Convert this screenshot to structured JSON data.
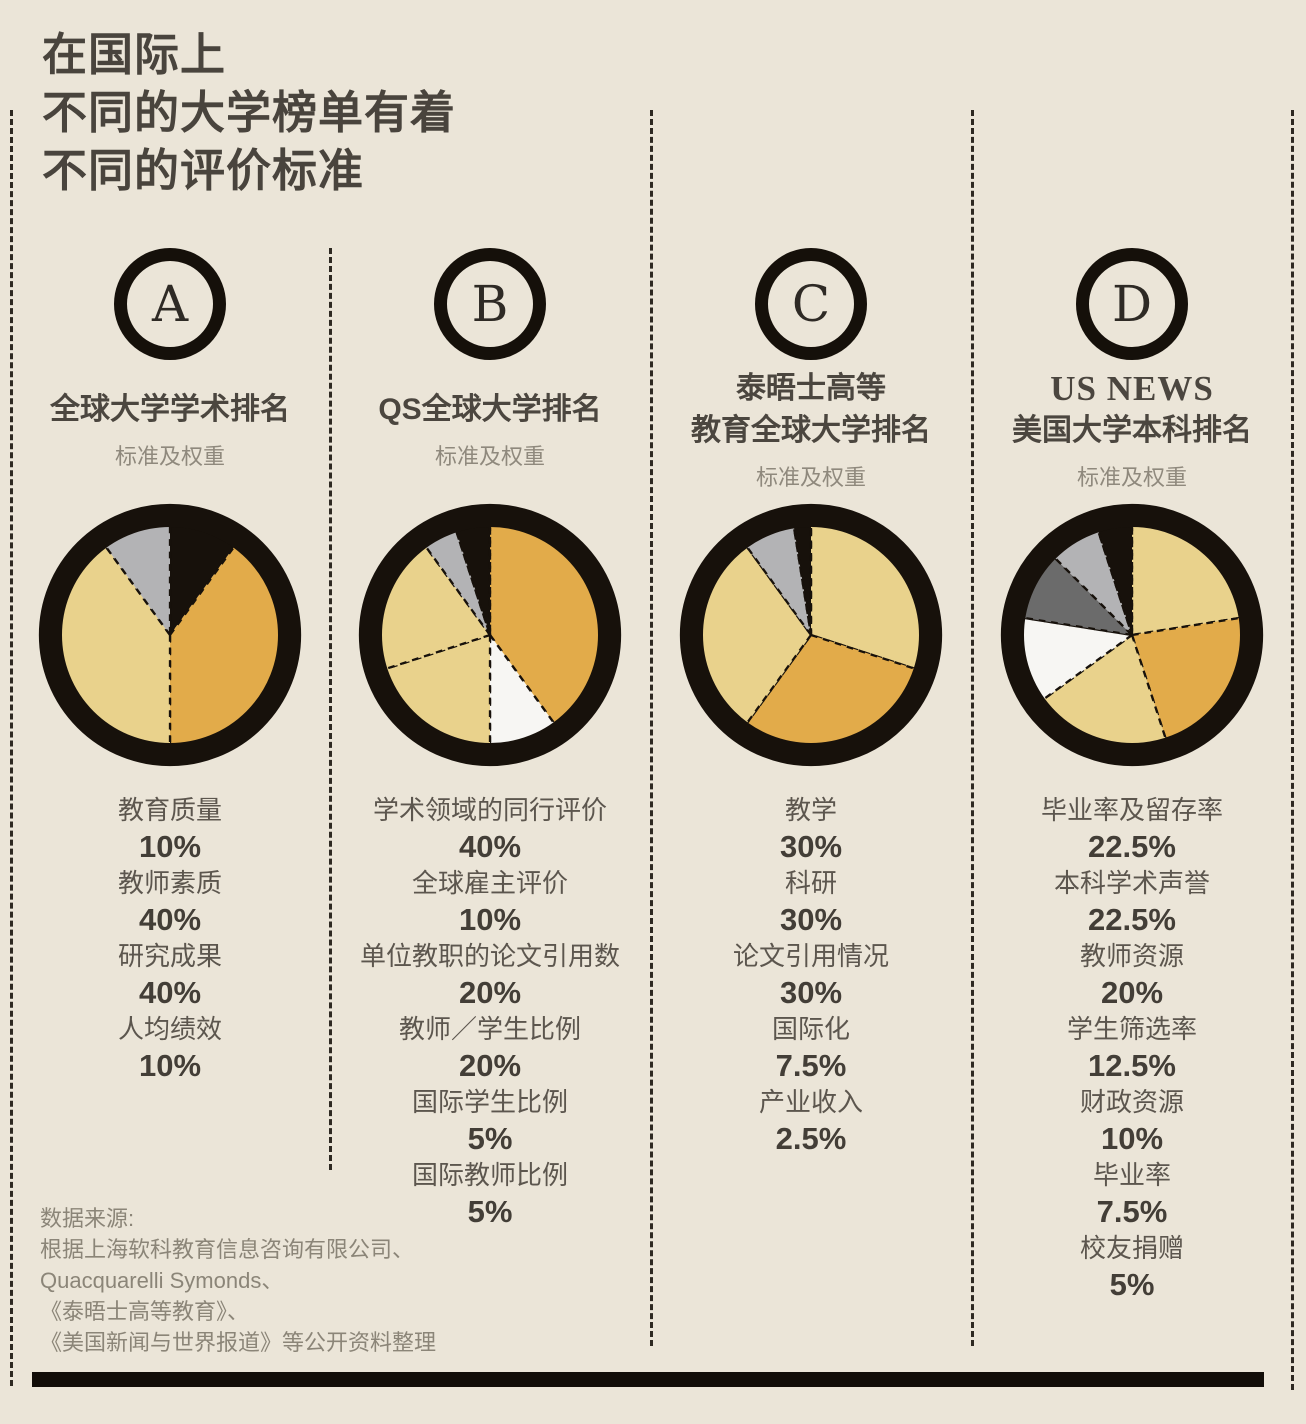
{
  "page": {
    "title_lines": [
      "在国际上",
      "不同的大学榜单有着",
      "不同的评价标准"
    ],
    "source_lines": [
      "数据来源:",
      "根据上海软科教育信息咨询有限公司、",
      "Quacquarelli  Symonds、",
      "《泰晤士高等教育》、",
      "《美国新闻与世界报道》等公开资料整理"
    ]
  },
  "colors": {
    "background": "#ebe5d8",
    "khaki": "#e9d28c",
    "gold": "#e2ab4a",
    "light_gray": "#b3b3b5",
    "dark_gray": "#6b6b6b",
    "white": "#f7f6f3",
    "black": "#17110b",
    "heading_text": "#4b463f",
    "muted_text": "#8f897d"
  },
  "columns": [
    {
      "letter": "A",
      "title_lines": [
        "全球大学学术排名"
      ],
      "subtitle": "标准及权重",
      "items": [
        {
          "label": "教育质量",
          "value": "10%"
        },
        {
          "label": "教师素质",
          "value": "40%"
        },
        {
          "label": "研究成果",
          "value": "40%"
        },
        {
          "label": "人均绩效",
          "value": "10%"
        }
      ]
    },
    {
      "letter": "B",
      "title_lines": [
        "QS全球大学排名"
      ],
      "subtitle": "标准及权重",
      "items": [
        {
          "label": "学术领域的同行评价",
          "value": "40%"
        },
        {
          "label": "全球雇主评价",
          "value": "10%"
        },
        {
          "label": "单位教职的论文引用数",
          "value": "20%"
        },
        {
          "label": "教师／学生比例",
          "value": "20%"
        },
        {
          "label": "国际学生比例",
          "value": "5%"
        },
        {
          "label": "国际教师比例",
          "value": "5%"
        }
      ]
    },
    {
      "letter": "C",
      "title_lines": [
        "泰晤士高等",
        "教育全球大学排名"
      ],
      "subtitle": "标准及权重",
      "items": [
        {
          "label": "教学",
          "value": "30%"
        },
        {
          "label": "科研",
          "value": "30%"
        },
        {
          "label": "论文引用情况",
          "value": "30%"
        },
        {
          "label": "国际化",
          "value": "7.5%"
        },
        {
          "label": "产业收入",
          "value": "2.5%"
        }
      ]
    },
    {
      "letter": "D",
      "title_lines": [
        "US NEWS",
        "美国大学本科排名"
      ],
      "subtitle": "标准及权重",
      "items": [
        {
          "label": "毕业率及留存率",
          "value": "22.5%"
        },
        {
          "label": "本科学术声誉",
          "value": "22.5%"
        },
        {
          "label": "教师资源",
          "value": "20%"
        },
        {
          "label": "学生筛选率",
          "value": "12.5%"
        },
        {
          "label": "财政资源",
          "value": "10%"
        },
        {
          "label": "毕业率",
          "value": "7.5%"
        },
        {
          "label": "校友捐赠",
          "value": "5%"
        }
      ]
    }
  ],
  "chart_data": [
    {
      "type": "pie",
      "title": "全球大学学术排名 标准及权重",
      "labels": [
        "教育质量",
        "教师素质",
        "研究成果",
        "人均绩效"
      ],
      "values": [
        10,
        40,
        40,
        10
      ],
      "colors": [
        "#17110b",
        "#e2ab4a",
        "#e9d28c",
        "#b3b3b5"
      ],
      "start": "12-oclock",
      "direction": "clockwise"
    },
    {
      "type": "pie",
      "title": "QS全球大学排名 标准及权重",
      "labels": [
        "学术领域的同行评价",
        "全球雇主评价",
        "单位教职的论文引用数",
        "教师／学生比例",
        "国际学生比例",
        "国际教师比例"
      ],
      "values": [
        40,
        10,
        20,
        20,
        5,
        5
      ],
      "colors": [
        "#e2ab4a",
        "#f7f6f3",
        "#e9d28c",
        "#e9d28c",
        "#b3b3b5",
        "#17110b"
      ],
      "start": "12-oclock",
      "direction": "clockwise"
    },
    {
      "type": "pie",
      "title": "泰晤士高等教育全球大学排名 标准及权重",
      "labels": [
        "教学",
        "科研",
        "论文引用情况",
        "国际化",
        "产业收入"
      ],
      "values": [
        30,
        30,
        30,
        7.5,
        2.5
      ],
      "colors": [
        "#e9d28c",
        "#e2ab4a",
        "#e9d28c",
        "#b3b3b5",
        "#17110b"
      ],
      "start": "12-oclock",
      "direction": "clockwise"
    },
    {
      "type": "pie",
      "title": "US NEWS 美国大学本科排名 标准及权重",
      "labels": [
        "毕业率及留存率",
        "本科学术声誉",
        "教师资源",
        "学生筛选率",
        "财政资源",
        "毕业率",
        "校友捐赠"
      ],
      "values": [
        22.5,
        22.5,
        20,
        12.5,
        10,
        7.5,
        5
      ],
      "colors": [
        "#e9d28c",
        "#e2ab4a",
        "#e9d28c",
        "#f7f6f3",
        "#6b6b6b",
        "#b3b3b5",
        "#17110b"
      ],
      "start": "12-oclock",
      "direction": "clockwise"
    }
  ]
}
